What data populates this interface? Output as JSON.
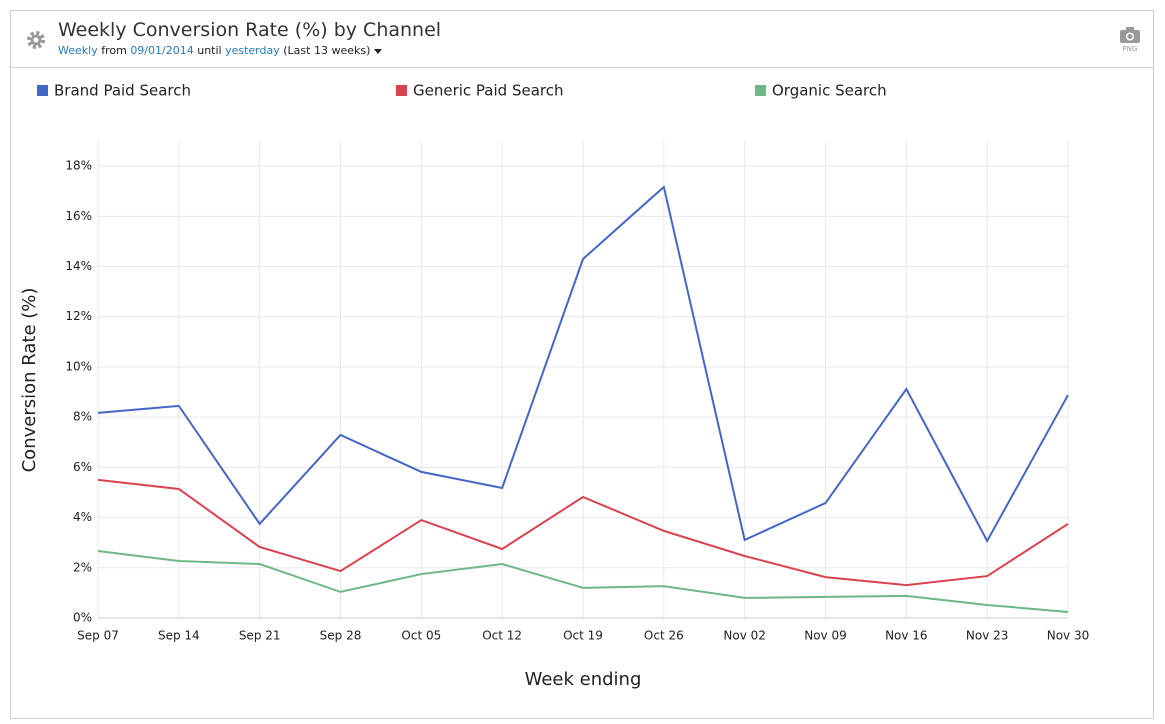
{
  "header": {
    "title": "Weekly Conversion Rate (%) by Channel",
    "interval": "Weekly",
    "from_text": "from",
    "start_date": "09/01/2014",
    "until_text": "until",
    "end_date": "yesterday",
    "range": "(Last 13 weeks)",
    "export_label": "PNG"
  },
  "chart_data": {
    "type": "line",
    "x_label": "Week ending",
    "y_label": "Conversion Rate (%)",
    "categories": [
      "Sep 07",
      "Sep 14",
      "Sep 21",
      "Sep 28",
      "Oct 05",
      "Oct 12",
      "Oct 19",
      "Oct 26",
      "Nov 02",
      "Nov 09",
      "Nov 16",
      "Nov 23",
      "Nov 30"
    ],
    "series": [
      {
        "name": "Brand Paid Search",
        "color": "#4466c4",
        "values": [
          8.17,
          8.45,
          3.75,
          7.29,
          5.82,
          5.18,
          14.3,
          17.17,
          3.11,
          4.58,
          9.12,
          3.07,
          8.88
        ]
      },
      {
        "name": "Generic Paid Search",
        "color": "#d9434f",
        "values": [
          5.5,
          5.14,
          2.83,
          1.87,
          3.9,
          2.75,
          4.82,
          3.47,
          2.47,
          1.63,
          1.31,
          1.67,
          3.75
        ]
      },
      {
        "name": "Organic Search",
        "color": "#6db884",
        "values": [
          2.67,
          2.27,
          2.15,
          1.04,
          1.75,
          2.15,
          1.2,
          1.27,
          0.8,
          0.84,
          0.88,
          0.52,
          0.24
        ]
      }
    ],
    "ylim": [
      0,
      19
    ],
    "yticks": [
      {
        "value": 0,
        "label": "0%"
      },
      {
        "value": 2,
        "label": "2%"
      },
      {
        "value": 4,
        "label": "4%"
      },
      {
        "value": 6,
        "label": "6%"
      },
      {
        "value": 8,
        "label": "8%"
      },
      {
        "value": 10,
        "label": "10%"
      },
      {
        "value": 12,
        "label": "12%"
      },
      {
        "value": 14,
        "label": "14%"
      },
      {
        "value": 16,
        "label": "16%"
      },
      {
        "value": 18,
        "label": "18%"
      }
    ],
    "grid": true,
    "legend": "top"
  }
}
